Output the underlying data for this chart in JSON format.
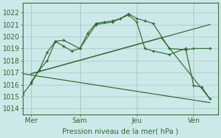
{
  "background_color": "#cce8e8",
  "grid_color": "#aacccc",
  "line_color": "#2d6a2d",
  "ylabel": "Pression niveau de la mer( hPa )",
  "ylim": [
    1013.5,
    1022.8
  ],
  "yticks": [
    1014,
    1015,
    1016,
    1017,
    1018,
    1019,
    1020,
    1021,
    1022
  ],
  "xlim": [
    0,
    12
  ],
  "xtick_positions": [
    0.5,
    3.5,
    7.0,
    10.5
  ],
  "xtick_labels": [
    "Mer",
    "Sam",
    "Jeu",
    "Ven"
  ],
  "vline_positions": [
    0.5,
    3.5,
    7.0,
    10.5
  ],
  "series": [
    {
      "x": [
        0.0,
        0.5,
        1.0,
        1.5,
        2.0,
        2.5,
        3.5,
        4.0,
        4.5,
        5.0,
        5.5,
        6.0,
        6.5,
        7.0,
        7.5,
        8.0,
        9.0,
        10.0,
        10.5,
        11.5
      ],
      "y": [
        1015.2,
        1016.1,
        1017.2,
        1018.0,
        1019.6,
        1019.7,
        1019.0,
        1020.3,
        1021.1,
        1021.2,
        1021.3,
        1021.5,
        1021.9,
        1021.5,
        1021.3,
        1021.1,
        1019.0,
        1018.9,
        1019.0,
        1019.0
      ],
      "linestyle": "-",
      "linewidth": 0.9,
      "markersize": 3
    },
    {
      "x": [
        0.5,
        1.0,
        1.5,
        2.0,
        2.5,
        3.0,
        3.5,
        4.5,
        5.5,
        6.5,
        7.0,
        7.5,
        8.0,
        9.0,
        10.0,
        10.5,
        11.0,
        11.5
      ],
      "y": [
        1016.2,
        1017.2,
        1018.7,
        1019.6,
        1019.2,
        1018.8,
        1019.0,
        1021.0,
        1021.2,
        1021.8,
        1021.2,
        1019.0,
        1018.8,
        1018.5,
        1019.0,
        1015.9,
        1015.8,
        1014.8
      ],
      "linestyle": "-",
      "linewidth": 0.9,
      "markersize": 3
    },
    {
      "x": [
        0.5,
        11.5
      ],
      "y": [
        1016.9,
        1021.0
      ],
      "linestyle": "-",
      "linewidth": 0.9,
      "markersize": 0
    },
    {
      "x": [
        0.5,
        8.5,
        11.5
      ],
      "y": [
        1016.9,
        1019.9,
        1014.8
      ],
      "linestyle": "-",
      "linewidth": 0.9,
      "markersize": 0
    },
    {
      "x": [
        0.0,
        11.5
      ],
      "y": [
        1016.9,
        1014.5
      ],
      "linestyle": "-",
      "linewidth": 0.9,
      "markersize": 0
    }
  ]
}
